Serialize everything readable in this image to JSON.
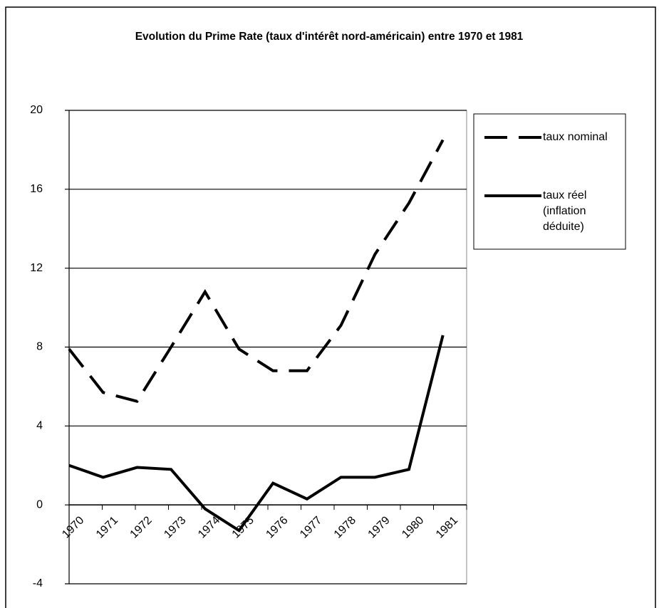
{
  "chart_data": {
    "type": "line",
    "title": "Evolution du Prime Rate (taux d'intérêt nord-américain) entre 1970 et 1981",
    "categories": [
      "1970",
      "1971",
      "1972",
      "1973",
      "1974",
      "1975",
      "1976",
      "1977",
      "1978",
      "1979",
      "1980",
      "1981"
    ],
    "series": [
      {
        "name": "taux nominal",
        "color": "#000000",
        "dash": true,
        "values": [
          7.9,
          5.7,
          5.25,
          8.0,
          10.8,
          7.9,
          6.8,
          6.8,
          9.1,
          12.7,
          15.3,
          18.5
        ]
      },
      {
        "name": "taux réel (inflation déduite)",
        "color": "#000000",
        "dash": false,
        "values": [
          2.0,
          1.4,
          1.9,
          1.8,
          -0.2,
          -1.3,
          1.1,
          0.3,
          1.4,
          1.4,
          1.8,
          8.6
        ]
      }
    ],
    "ylim": [
      -4,
      20
    ],
    "yticks": [
      -4,
      0,
      4,
      8,
      12,
      16,
      20
    ],
    "grid": true,
    "legend": "right"
  }
}
